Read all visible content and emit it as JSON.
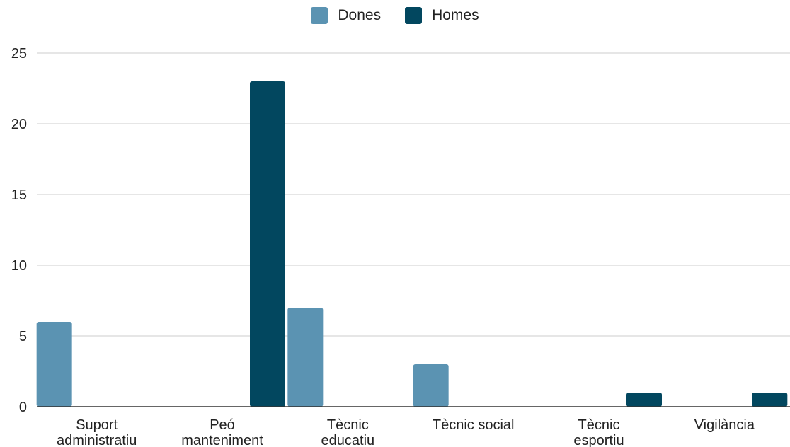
{
  "chart_data": {
    "type": "bar",
    "title": "",
    "xlabel": "",
    "ylabel": "",
    "categories": [
      [
        "Suport",
        "administratiu"
      ],
      [
        "Peó",
        "manteniment"
      ],
      [
        "Tècnic",
        "educatiu"
      ],
      [
        "Tècnic social"
      ],
      [
        "Tècnic",
        "esportiu"
      ],
      [
        "Vigilància"
      ]
    ],
    "series": [
      {
        "name": "Dones",
        "color": "#5b93b2",
        "values": [
          6,
          0,
          7,
          3,
          0,
          0
        ]
      },
      {
        "name": "Homes",
        "color": "#02475f",
        "values": [
          0,
          23,
          0,
          0,
          1,
          1
        ]
      }
    ],
    "ylim": [
      0,
      25
    ],
    "yticks": [
      0,
      5,
      10,
      15,
      20,
      25
    ],
    "grid": true,
    "legend_position": "top-center"
  }
}
